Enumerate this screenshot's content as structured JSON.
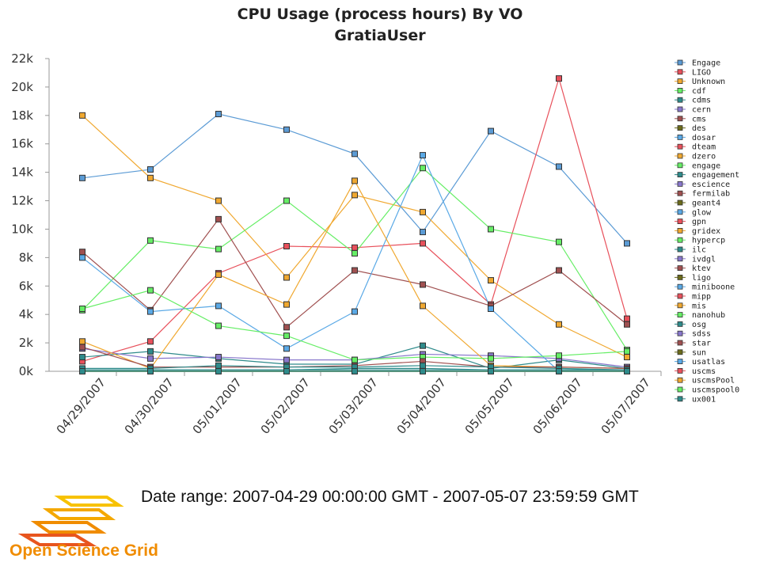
{
  "chart_data": {
    "type": "line",
    "title": "CPU Usage (process hours) By VO",
    "subtitle": "GratiaUser",
    "ylim": [
      0,
      22000
    ],
    "yticks": [
      0,
      2000,
      4000,
      6000,
      8000,
      10000,
      12000,
      14000,
      16000,
      18000,
      20000,
      22000
    ],
    "ytick_labels": [
      "0k",
      "2k",
      "4k",
      "6k",
      "8k",
      "10k",
      "12k",
      "14k",
      "16k",
      "18k",
      "20k",
      "22k"
    ],
    "categories": [
      "04/29/2007",
      "04/30/2007",
      "05/01/2007",
      "05/02/2007",
      "05/03/2007",
      "05/04/2007",
      "05/05/2007",
      "05/06/2007",
      "05/07/2007"
    ],
    "grid": false,
    "legend_position": "right",
    "series": [
      {
        "name": "Engage",
        "color": "#5b9bd5",
        "values": [
          13600,
          14200,
          18100,
          17000,
          15300,
          9800,
          16900,
          14400,
          9000
        ]
      },
      {
        "name": "LIGO",
        "color": "#e8505b",
        "values": [
          700,
          2100,
          6900,
          8800,
          8700,
          9000,
          4700,
          20600,
          3700
        ]
      },
      {
        "name": "Unknown",
        "color": "#f0a830",
        "values": [
          18000,
          13600,
          12000,
          6600,
          12400,
          11200,
          6400,
          3300,
          1000
        ]
      },
      {
        "name": "cdf",
        "color": "#66ee66",
        "values": [
          4300,
          9200,
          8600,
          12000,
          8300,
          14300,
          10000,
          9100,
          1500
        ]
      },
      {
        "name": "cdms",
        "color": "#2e8b8b",
        "values": [
          1000,
          1400,
          900,
          500,
          500,
          1800,
          200,
          800,
          200
        ]
      },
      {
        "name": "cern",
        "color": "#8877cc",
        "values": [
          1600,
          900,
          1000,
          800,
          800,
          1200,
          1100,
          900,
          300
        ]
      },
      {
        "name": "cms",
        "color": "#a05050",
        "values": [
          8400,
          4300,
          10700,
          3100,
          7100,
          6100,
          4600,
          7100,
          3300
        ]
      },
      {
        "name": "des",
        "color": "#6b6b1a",
        "values": [
          0,
          0,
          0,
          0,
          0,
          0,
          0,
          0,
          0
        ]
      },
      {
        "name": "dosar",
        "color": "#5aa9e6",
        "values": [
          8000,
          4200,
          4600,
          1600,
          4200,
          15200,
          4400,
          0,
          0
        ]
      },
      {
        "name": "dteam",
        "color": "#e8505b",
        "values": [
          0,
          0,
          0,
          0,
          0,
          0,
          0,
          0,
          0
        ]
      },
      {
        "name": "dzero",
        "color": "#f0a830",
        "values": [
          2100,
          200,
          6800,
          4700,
          13400,
          4600,
          400,
          300,
          200
        ]
      },
      {
        "name": "engage",
        "color": "#66ee66",
        "values": [
          4400,
          5700,
          3200,
          2500,
          800,
          1000,
          900,
          1100,
          1400
        ]
      },
      {
        "name": "engagement",
        "color": "#2e8b8b",
        "values": [
          100,
          100,
          100,
          100,
          100,
          100,
          100,
          100,
          100
        ]
      },
      {
        "name": "escience",
        "color": "#8877cc",
        "values": [
          0,
          0,
          0,
          0,
          0,
          0,
          0,
          0,
          0
        ]
      },
      {
        "name": "fermilab",
        "color": "#a05050",
        "values": [
          1700,
          300,
          300,
          300,
          400,
          700,
          300,
          300,
          200
        ]
      },
      {
        "name": "geant4",
        "color": "#6b6b1a",
        "values": [
          0,
          0,
          0,
          0,
          0,
          0,
          0,
          0,
          0
        ]
      },
      {
        "name": "glow",
        "color": "#5aa9e6",
        "values": [
          0,
          0,
          0,
          0,
          0,
          0,
          0,
          0,
          0
        ]
      },
      {
        "name": "gpn",
        "color": "#e8505b",
        "values": [
          0,
          0,
          0,
          0,
          0,
          0,
          0,
          0,
          0
        ]
      },
      {
        "name": "gridex",
        "color": "#f0a830",
        "values": [
          0,
          0,
          0,
          0,
          0,
          0,
          0,
          0,
          0
        ]
      },
      {
        "name": "hypercp",
        "color": "#66ee66",
        "values": [
          0,
          0,
          0,
          0,
          0,
          0,
          0,
          0,
          0
        ]
      },
      {
        "name": "ilc",
        "color": "#2e8b8b",
        "values": [
          100,
          100,
          100,
          100,
          200,
          200,
          100,
          100,
          100
        ]
      },
      {
        "name": "ivdgl",
        "color": "#8877cc",
        "values": [
          0,
          0,
          0,
          0,
          0,
          0,
          0,
          0,
          0
        ]
      },
      {
        "name": "ktev",
        "color": "#a05050",
        "values": [
          0,
          0,
          0,
          0,
          0,
          0,
          0,
          0,
          0
        ]
      },
      {
        "name": "ligo",
        "color": "#6b6b1a",
        "values": [
          0,
          0,
          0,
          0,
          0,
          0,
          0,
          0,
          0
        ]
      },
      {
        "name": "miniboone",
        "color": "#5aa9e6",
        "values": [
          0,
          0,
          0,
          0,
          0,
          0,
          0,
          0,
          0
        ]
      },
      {
        "name": "mipp",
        "color": "#e8505b",
        "values": [
          0,
          0,
          0,
          0,
          0,
          0,
          0,
          0,
          0
        ]
      },
      {
        "name": "mis",
        "color": "#f0a830",
        "values": [
          0,
          0,
          0,
          0,
          0,
          0,
          0,
          0,
          0
        ]
      },
      {
        "name": "nanohub",
        "color": "#66ee66",
        "values": [
          0,
          0,
          0,
          0,
          0,
          0,
          0,
          0,
          0
        ]
      },
      {
        "name": "osg",
        "color": "#2e8b8b",
        "values": [
          200,
          200,
          400,
          300,
          300,
          400,
          300,
          200,
          100
        ]
      },
      {
        "name": "sdss",
        "color": "#8877cc",
        "values": [
          0,
          0,
          0,
          0,
          0,
          0,
          0,
          0,
          0
        ]
      },
      {
        "name": "star",
        "color": "#a05050",
        "values": [
          0,
          0,
          0,
          0,
          0,
          0,
          0,
          0,
          0
        ]
      },
      {
        "name": "sun",
        "color": "#6b6b1a",
        "values": [
          0,
          0,
          0,
          0,
          0,
          0,
          0,
          0,
          0
        ]
      },
      {
        "name": "usatlas",
        "color": "#5aa9e6",
        "values": [
          0,
          0,
          0,
          0,
          0,
          0,
          0,
          0,
          0
        ]
      },
      {
        "name": "uscms",
        "color": "#e8505b",
        "values": [
          0,
          0,
          0,
          0,
          0,
          0,
          0,
          0,
          0
        ]
      },
      {
        "name": "uscmsPool",
        "color": "#f0a830",
        "values": [
          0,
          0,
          0,
          0,
          0,
          0,
          0,
          0,
          0
        ]
      },
      {
        "name": "uscmspool0",
        "color": "#66ee66",
        "values": [
          0,
          0,
          0,
          0,
          0,
          0,
          0,
          0,
          0
        ]
      },
      {
        "name": "ux001",
        "color": "#2e8b8b",
        "values": [
          0,
          0,
          0,
          0,
          0,
          0,
          0,
          0,
          0
        ]
      }
    ]
  },
  "footer": {
    "date_range": "Date range: 2007-04-29 00:00:00 GMT - 2007-05-07 23:59:59 GMT",
    "logo_text": "Open Science Grid",
    "logo_colors": [
      "#f7c200",
      "#f08c00",
      "#e8551e"
    ]
  }
}
